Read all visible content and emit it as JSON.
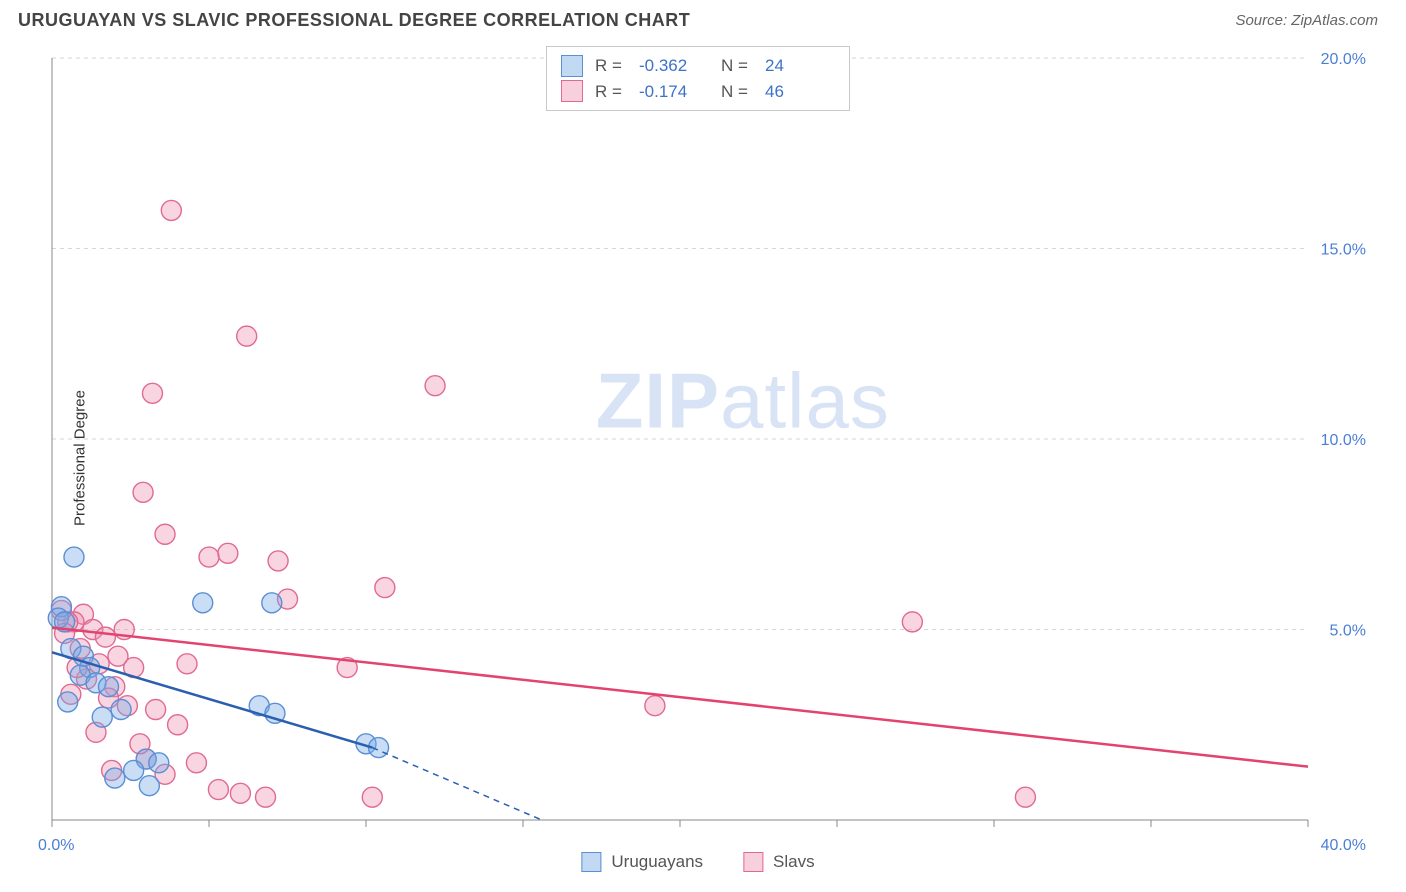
{
  "title": "URUGUAYAN VS SLAVIC PROFESSIONAL DEGREE CORRELATION CHART",
  "source": "Source: ZipAtlas.com",
  "ylabel": "Professional Degree",
  "watermark": {
    "bold": "ZIP",
    "rest": "atlas"
  },
  "chart": {
    "type": "scatter+regression",
    "background_color": "#ffffff",
    "grid_color": "#d6d6d6",
    "axis_color": "#888888",
    "xlim": [
      0,
      40
    ],
    "ylim": [
      0,
      20
    ],
    "x_ticks": [
      0,
      5,
      10,
      15,
      20,
      25,
      30,
      35,
      40
    ],
    "y_ticks": [
      5,
      10,
      15,
      20
    ],
    "x_tick_labels": [
      "0.0%",
      "",
      "",
      "",
      "",
      "",
      "",
      "",
      "40.0%"
    ],
    "y_tick_labels": [
      "5.0%",
      "10.0%",
      "15.0%",
      "20.0%"
    ],
    "tick_label_color": "#4a7fd6",
    "tick_fontsize": 16,
    "marker_radius": 10,
    "marker_stroke_width": 1.4,
    "series": {
      "uruguayans": {
        "label": "Uruguayans",
        "fill": "rgba(120,170,230,0.40)",
        "stroke": "#5a8fd6",
        "R": "-0.362",
        "N": "24",
        "regression": {
          "x0": 0,
          "y0": 4.4,
          "x1": 10.2,
          "y1": 1.9,
          "color": "#2a5fb0",
          "width": 2.5,
          "dash_x1": 15.6,
          "dash_y1": 0
        },
        "points": [
          [
            0.7,
            6.9
          ],
          [
            0.3,
            5.6
          ],
          [
            0.2,
            5.3
          ],
          [
            0.4,
            5.2
          ],
          [
            0.6,
            4.5
          ],
          [
            1.0,
            4.3
          ],
          [
            1.2,
            4.0
          ],
          [
            0.9,
            3.8
          ],
          [
            1.4,
            3.6
          ],
          [
            1.8,
            3.5
          ],
          [
            0.5,
            3.1
          ],
          [
            2.2,
            2.9
          ],
          [
            1.6,
            2.7
          ],
          [
            3.0,
            1.6
          ],
          [
            3.4,
            1.5
          ],
          [
            4.8,
            5.7
          ],
          [
            7.0,
            5.7
          ],
          [
            6.6,
            3.0
          ],
          [
            7.1,
            2.8
          ],
          [
            10.0,
            2.0
          ],
          [
            10.4,
            1.9
          ],
          [
            2.6,
            1.3
          ],
          [
            2.0,
            1.1
          ],
          [
            3.1,
            0.9
          ]
        ]
      },
      "slavs": {
        "label": "Slavs",
        "fill": "rgba(240,150,180,0.40)",
        "stroke": "#e06a92",
        "R": "-0.174",
        "N": "46",
        "regression": {
          "x0": 0,
          "y0": 5.05,
          "x1": 40,
          "y1": 1.4,
          "color": "#e2446f",
          "width": 2.5
        },
        "points": [
          [
            3.8,
            16.0
          ],
          [
            6.2,
            12.7
          ],
          [
            3.2,
            11.2
          ],
          [
            12.2,
            11.4
          ],
          [
            2.9,
            8.6
          ],
          [
            3.6,
            7.5
          ],
          [
            5.6,
            7.0
          ],
          [
            5.0,
            6.9
          ],
          [
            7.2,
            6.8
          ],
          [
            10.6,
            6.1
          ],
          [
            7.5,
            5.8
          ],
          [
            1.0,
            5.4
          ],
          [
            0.7,
            5.2
          ],
          [
            0.5,
            5.2
          ],
          [
            1.3,
            5.0
          ],
          [
            1.7,
            4.8
          ],
          [
            0.9,
            4.5
          ],
          [
            2.1,
            4.3
          ],
          [
            1.5,
            4.1
          ],
          [
            2.6,
            4.0
          ],
          [
            4.3,
            4.1
          ],
          [
            9.4,
            4.0
          ],
          [
            1.1,
            3.7
          ],
          [
            2.0,
            3.5
          ],
          [
            0.6,
            3.3
          ],
          [
            1.8,
            3.2
          ],
          [
            2.4,
            3.0
          ],
          [
            3.3,
            2.9
          ],
          [
            4.0,
            2.5
          ],
          [
            3.0,
            1.6
          ],
          [
            4.6,
            1.5
          ],
          [
            5.3,
            0.8
          ],
          [
            6.0,
            0.7
          ],
          [
            6.8,
            0.6
          ],
          [
            10.2,
            0.6
          ],
          [
            19.2,
            3.0
          ],
          [
            27.4,
            5.2
          ],
          [
            31.0,
            0.6
          ],
          [
            1.4,
            2.3
          ],
          [
            2.8,
            2.0
          ],
          [
            0.4,
            4.9
          ],
          [
            0.8,
            4.0
          ],
          [
            1.9,
            1.3
          ],
          [
            3.6,
            1.2
          ],
          [
            0.3,
            5.5
          ],
          [
            2.3,
            5.0
          ]
        ]
      }
    }
  },
  "legend_top": {
    "rows": [
      {
        "swatch": "blue",
        "R_label": "R =",
        "R": "-0.362",
        "N_label": "N =",
        "N": "24"
      },
      {
        "swatch": "pink",
        "R_label": "R =",
        "R": "-0.174",
        "N_label": "N =",
        "N": "46"
      }
    ]
  },
  "legend_bottom": [
    {
      "swatch": "blue",
      "label": "Uruguayans"
    },
    {
      "swatch": "pink",
      "label": "Slavs"
    }
  ]
}
